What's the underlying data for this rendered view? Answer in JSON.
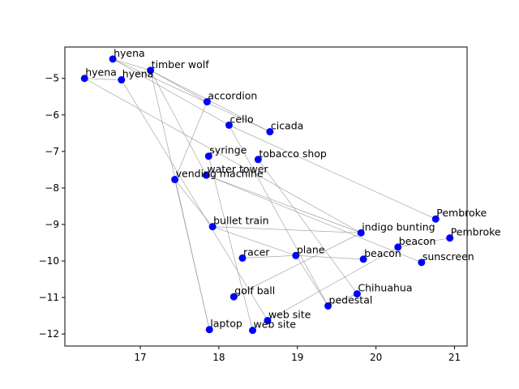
{
  "chart_data": {
    "type": "scatter",
    "title": "",
    "xlabel": "",
    "ylabel": "",
    "xlim": [
      16.04,
      21.16
    ],
    "ylim": [
      -12.33,
      -4.14
    ],
    "grid": false,
    "x_ticks": [
      17,
      18,
      19,
      20,
      21
    ],
    "x_tick_labels": [
      "17",
      "18",
      "19",
      "20",
      "21"
    ],
    "y_ticks": [
      -12,
      -11,
      -10,
      -9,
      -8,
      -7,
      -6,
      -5
    ],
    "y_tick_labels": [
      "−12",
      "−11",
      "−10",
      "−9",
      "−8",
      "−7",
      "−6",
      "−5"
    ],
    "marker_color": "#0000ff",
    "edge_color": "#999999",
    "points": [
      {
        "label": "hyena",
        "x": 16.65,
        "y": -4.47
      },
      {
        "label": "timber wolf",
        "x": 17.13,
        "y": -4.78
      },
      {
        "label": "hyena",
        "x": 16.29,
        "y": -5.0
      },
      {
        "label": "hyena",
        "x": 16.76,
        "y": -5.04
      },
      {
        "label": "accordion",
        "x": 17.85,
        "y": -5.64
      },
      {
        "label": "cello",
        "x": 18.13,
        "y": -6.28
      },
      {
        "label": "cicada",
        "x": 18.65,
        "y": -6.46
      },
      {
        "label": "syringe",
        "x": 17.87,
        "y": -7.13
      },
      {
        "label": "tobacco shop",
        "x": 18.5,
        "y": -7.22
      },
      {
        "label": "water tower",
        "x": 17.84,
        "y": -7.65
      },
      {
        "label": "vending machine",
        "x": 17.44,
        "y": -7.77
      },
      {
        "label": "Pembroke",
        "x": 20.76,
        "y": -8.85
      },
      {
        "label": "bullet train",
        "x": 17.92,
        "y": -9.06
      },
      {
        "label": "indigo bunting",
        "x": 19.81,
        "y": -9.23
      },
      {
        "label": "Pembroke",
        "x": 20.94,
        "y": -9.37
      },
      {
        "label": "beacon",
        "x": 20.28,
        "y": -9.62
      },
      {
        "label": "plane",
        "x": 18.98,
        "y": -9.85
      },
      {
        "label": "racer",
        "x": 18.3,
        "y": -9.92
      },
      {
        "label": "beacon",
        "x": 19.84,
        "y": -9.95
      },
      {
        "label": "sunscreen",
        "x": 20.58,
        "y": -10.04
      },
      {
        "label": "Chihuahua",
        "x": 19.76,
        "y": -10.9
      },
      {
        "label": "golf ball",
        "x": 18.19,
        "y": -10.98
      },
      {
        "label": "pedestal",
        "x": 19.39,
        "y": -11.23
      },
      {
        "label": "web site",
        "x": 18.62,
        "y": -11.63
      },
      {
        "label": "laptop",
        "x": 17.88,
        "y": -11.88
      },
      {
        "label": "web site",
        "x": 18.43,
        "y": -11.9
      }
    ],
    "edges": [
      [
        0,
        1
      ],
      [
        0,
        5
      ],
      [
        0,
        6
      ],
      [
        1,
        4
      ],
      [
        1,
        6
      ],
      [
        1,
        9
      ],
      [
        1,
        24
      ],
      [
        2,
        3
      ],
      [
        2,
        13
      ],
      [
        3,
        23
      ],
      [
        4,
        10
      ],
      [
        5,
        22
      ],
      [
        5,
        11
      ],
      [
        7,
        25
      ],
      [
        8,
        20
      ],
      [
        9,
        19
      ],
      [
        9,
        13
      ],
      [
        10,
        12
      ],
      [
        10,
        24
      ],
      [
        12,
        16
      ],
      [
        12,
        13
      ],
      [
        14,
        15
      ],
      [
        16,
        18
      ],
      [
        16,
        17
      ],
      [
        16,
        22
      ],
      [
        13,
        21
      ],
      [
        15,
        23
      ],
      [
        20,
        22
      ]
    ]
  }
}
